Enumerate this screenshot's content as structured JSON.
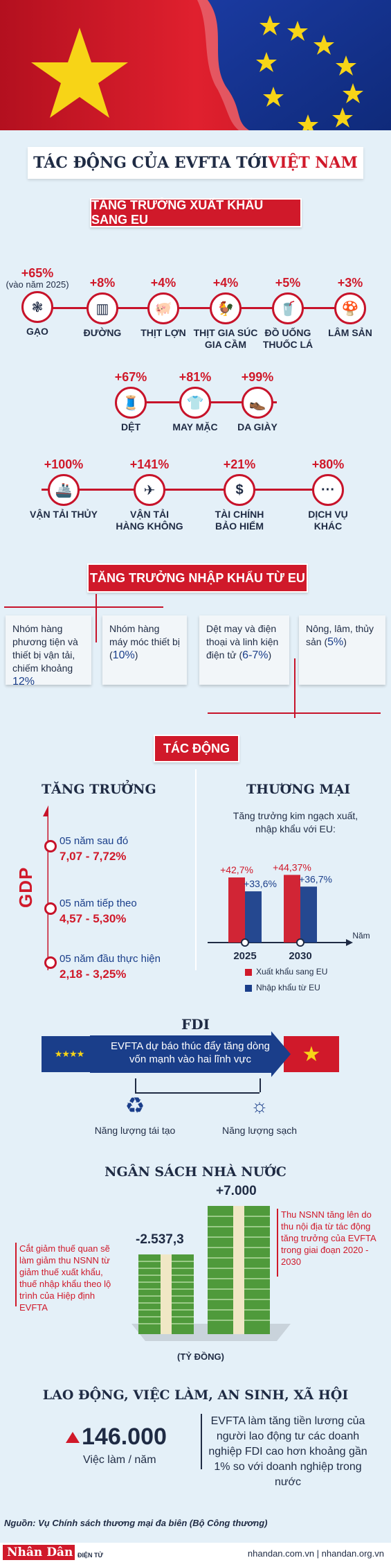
{
  "title": {
    "part1": "TÁC ĐỘNG CỦA EVFTA TỚI ",
    "part2": "VIỆT NAM"
  },
  "export_section": {
    "heading": "TĂNG TRƯỞNG XUẤT KHẨU SANG EU",
    "row1": [
      {
        "pct": "+65%",
        "note": "(vào năm 2025)",
        "label": "GẠO",
        "icon": "rice-icon"
      },
      {
        "pct": "+8%",
        "label": "ĐƯỜNG",
        "icon": "sugar-icon"
      },
      {
        "pct": "+4%",
        "label": "THỊT LỢN",
        "icon": "pig-icon"
      },
      {
        "pct": "+4%",
        "label": "THỊT GIA SÚC GIA CẦM",
        "icon": "chicken-icon"
      },
      {
        "pct": "+5%",
        "label": "ĐỒ UỐNG THUỐC LÁ",
        "icon": "drink-icon"
      },
      {
        "pct": "+3%",
        "label": "LÂM SẢN",
        "icon": "mushroom-icon"
      }
    ],
    "row2": [
      {
        "pct": "+67%",
        "label": "DỆT",
        "icon": "textile-icon"
      },
      {
        "pct": "+81%",
        "label": "MAY MẶC",
        "icon": "shirt-icon"
      },
      {
        "pct": "+99%",
        "label": "DA GIÀY",
        "icon": "shoe-icon"
      }
    ],
    "row3": [
      {
        "pct": "+100%",
        "label": "VẬN TẢI THỦY",
        "icon": "ship-icon"
      },
      {
        "pct": "+141%",
        "label": "VẬN TẢI HÀNG KHÔNG",
        "icon": "plane-icon"
      },
      {
        "pct": "+21%",
        "label": "TÀI CHÍNH BẢO HIỂM",
        "icon": "dollar-icon"
      },
      {
        "pct": "+80%",
        "label": "DỊCH VỤ KHÁC",
        "icon": "more-icon"
      }
    ]
  },
  "import_section": {
    "heading": "TĂNG TRƯỞNG NHẬP KHẨU TỪ EU",
    "cards": [
      {
        "text": "Nhóm hàng phương tiện và thiết bị vận tải, chiếm khoảng",
        "value": "12%"
      },
      {
        "text": "Nhóm hàng máy móc thiết bị (",
        "value": "10%",
        "after": ")"
      },
      {
        "text": "Dệt may và điện thoại và linh kiện điện tử (",
        "value": "6-7%",
        "after": ")"
      },
      {
        "text": "Nông, lâm, thủy sản (",
        "value": "5%",
        "after": ")"
      }
    ]
  },
  "impact_section": {
    "heading": "TÁC ĐỘNG",
    "growth": {
      "title": "TĂNG TRƯỞNG",
      "axis": "GDP",
      "items": [
        {
          "period": "05 năm sau đó",
          "value": "7,07 - 7,72%"
        },
        {
          "period": "05 năm tiếp theo",
          "value": "4,57 - 5,30%"
        },
        {
          "period": "05 năm đầu thực hiện",
          "value": "2,18 - 3,25%"
        }
      ]
    },
    "trade": {
      "title": "THƯƠNG MẠI",
      "subtitle": "Tăng trưởng kim ngạch xuất, nhập khẩu với EU:",
      "x_unit": "Năm",
      "legend_export": "Xuất khẩu sang EU",
      "legend_import": "Nhập khẩu từ EU"
    }
  },
  "chart_data": {
    "type": "bar",
    "categories": [
      "2025",
      "2030"
    ],
    "series": [
      {
        "name": "Xuất khẩu sang EU",
        "values": [
          42.7,
          44.37
        ],
        "labels": [
          "+42,7%",
          "+44,37%"
        ]
      },
      {
        "name": "Nhập khẩu từ EU",
        "values": [
          33.6,
          36.7
        ],
        "labels": [
          "+33,6%",
          "+36,7%"
        ]
      }
    ],
    "xlabel": "Năm",
    "ylim": [
      0,
      50
    ],
    "colors": {
      "export": "#d0192a",
      "import": "#1a3e8a"
    }
  },
  "fdi": {
    "title": "FDI",
    "arrow_text": "EVFTA dự báo thúc đẩy tăng dòng vốn mạnh vào hai lĩnh vực",
    "left": "Năng lượng tái tạo",
    "right": "Năng lượng sạch"
  },
  "budget": {
    "title": "NGÂN SÁCH NHÀ NƯỚC",
    "left_note": "Cắt giảm thuế quan sẽ làm giảm thu NSNN từ giảm thuế xuất khẩu, thuế nhập khẩu theo lộ trình của Hiệp định EVFTA",
    "negative": "-2.537,3",
    "positive": "+7.000",
    "right_note": "Thu NSNN tăng lên do thu nội địa từ tác động tăng trưởng của EVFTA trong giai đoạn 2020 - 2030",
    "unit": "(TỶ ĐỒNG)"
  },
  "labor": {
    "title": "LAO ĐỘNG, VIỆC LÀM, AN SINH, XÃ HỘI",
    "jobs": "146.000",
    "jobs_unit": "Việc làm / năm",
    "note": "EVFTA làm tăng tiền lương của người lao động tư các doanh nghiệp FDI cao hơn khoảng gần 1% so với doanh nghiệp trong nước"
  },
  "footer": {
    "source": "Nguồn: Vụ Chính sách thương mại đa biên (Bộ Công thương)",
    "logo": "Nhân Dân",
    "logo_sub": "ĐIỆN TỬ",
    "sites": "nhandan.com.vn | nhandan.org.vn"
  },
  "colors": {
    "accent": "#d0192a",
    "navy": "#1a3e8a",
    "bg": "#e4f0f8",
    "money": "#4f9a3b"
  }
}
